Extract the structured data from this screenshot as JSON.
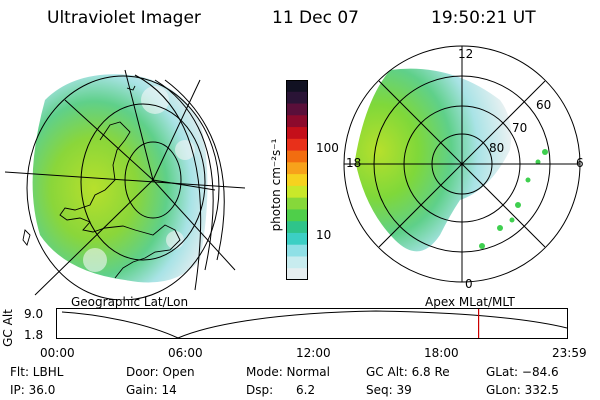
{
  "header": {
    "instrument": "Ultraviolet Imager",
    "date": "11 Dec 07",
    "time": "19:50:21 UT"
  },
  "colorbar": {
    "unit_label": "photon cm⁻²s⁻¹",
    "ticks": [
      "100",
      "10"
    ],
    "colors": [
      "#111122",
      "#2a1436",
      "#5a0f3a",
      "#8c0a2c",
      "#c40f1a",
      "#e8301a",
      "#f26d10",
      "#f7a21b",
      "#f6d21f",
      "#c9e82a",
      "#86d83a",
      "#4fcf4a",
      "#2fc48a",
      "#3ccfc4",
      "#8fe0e6",
      "#c8ecef",
      "#e6eef0"
    ]
  },
  "left_map": {
    "label": "Geographic Lat/Lon"
  },
  "right_map": {
    "label": "Apex MLat/MLT",
    "mlt_labels": {
      "top": "12",
      "left": "18",
      "right": "6",
      "bottom": "0"
    },
    "lat_labels": [
      "60",
      "70",
      "80"
    ]
  },
  "timeline": {
    "axis_title": "GC Alt",
    "y_top": "9.0",
    "y_bottom": "1.8",
    "x_labels": [
      "00:00",
      "06:00",
      "12:00",
      "18:00",
      "23:59"
    ],
    "marker_color": "#cc0000",
    "marker_hour": 19.84
  },
  "footer": {
    "filter": "Flt: LBHL",
    "ip": "IP: 36.0",
    "door": "Door: Open",
    "gain": "Gain: 14",
    "mode": "Mode: Normal",
    "dsp": "Dsp:      6.2",
    "gc_alt": "GC Alt: 6.8 Re",
    "seq": "Seq: 39",
    "glat": "GLat: −84.6",
    "glon": "GLon: 332.5"
  }
}
